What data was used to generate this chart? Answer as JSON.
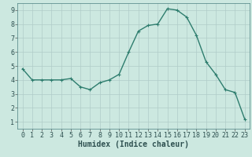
{
  "x": [
    0,
    1,
    2,
    3,
    4,
    5,
    6,
    7,
    8,
    9,
    10,
    11,
    12,
    13,
    14,
    15,
    16,
    17,
    18,
    19,
    20,
    21,
    22,
    23
  ],
  "y": [
    4.8,
    4.0,
    4.0,
    4.0,
    4.0,
    4.1,
    3.5,
    3.3,
    3.8,
    4.0,
    4.4,
    6.0,
    7.5,
    7.9,
    8.0,
    9.1,
    9.0,
    8.5,
    7.2,
    5.3,
    4.4,
    3.3,
    3.1,
    1.2
  ],
  "line_color": "#2e7d6e",
  "marker": "+",
  "marker_size": 3,
  "linewidth": 1.0,
  "bg_color": "#cce8e0",
  "grid_color": "#b0ccc8",
  "xlabel": "Humidex (Indice chaleur)",
  "xlabel_fontsize": 7,
  "tick_fontsize": 6,
  "xlim": [
    -0.5,
    23.5
  ],
  "ylim": [
    0.5,
    9.5
  ],
  "yticks": [
    1,
    2,
    3,
    4,
    5,
    6,
    7,
    8,
    9
  ],
  "xticks": [
    0,
    1,
    2,
    3,
    4,
    5,
    6,
    7,
    8,
    9,
    10,
    11,
    12,
    13,
    14,
    15,
    16,
    17,
    18,
    19,
    20,
    21,
    22,
    23
  ]
}
